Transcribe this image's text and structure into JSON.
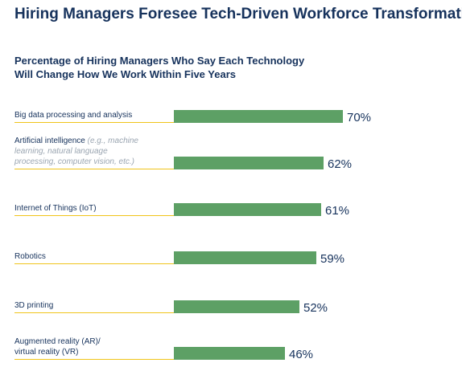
{
  "chart_data": {
    "type": "bar",
    "orientation": "horizontal",
    "title": "Hiring Managers Foresee Tech-Driven Workforce Transformation",
    "subtitle": "Percentage of Hiring Managers Who Say Each Technology\nWill Change How We Work Within Five Years",
    "categories": [
      {
        "label": [
          "Big data processing and analysis"
        ],
        "note": ""
      },
      {
        "label": [
          "Artificial intelligence"
        ],
        "note": [
          "(e.g., machine",
          "learning, natural language",
          "processing, computer vision, etc.)"
        ]
      },
      {
        "label": [
          "Internet of Things (IoT)"
        ],
        "note": ""
      },
      {
        "label": [
          "Robotics"
        ],
        "note": ""
      },
      {
        "label": [
          "3D printing"
        ],
        "note": ""
      },
      {
        "label": [
          "Augmented reality (AR)/",
          "virtual reality (VR)"
        ],
        "note": ""
      }
    ],
    "values": [
      70,
      62,
      61,
      59,
      52,
      46
    ],
    "value_labels": [
      "70%",
      "62%",
      "61%",
      "59%",
      "52%",
      "46%"
    ],
    "unit": "%",
    "bar_color": "#5da065",
    "underline_color": "#f0c419",
    "text_color": "#16325c"
  }
}
